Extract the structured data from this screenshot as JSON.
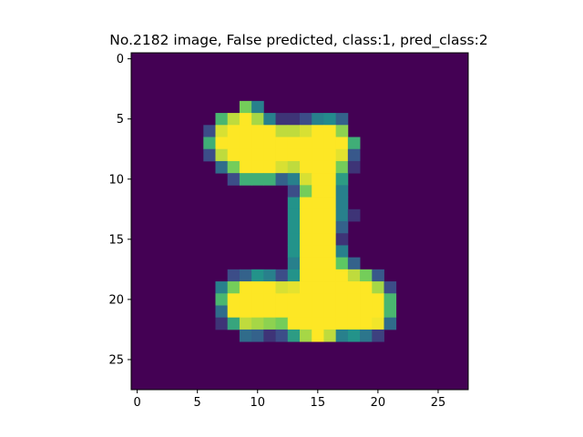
{
  "chart_data": {
    "type": "heatmap",
    "title": "No.2182 image, False predicted, class:1, pred_class:2",
    "xlabel": "",
    "ylabel": "",
    "x_ticks": [
      0,
      5,
      10,
      15,
      20,
      25
    ],
    "y_ticks": [
      0,
      5,
      10,
      15,
      20,
      25
    ],
    "xlim": [
      -0.5,
      27.5
    ],
    "ylim": [
      27.5,
      -0.5
    ],
    "colormap": "viridis",
    "value_range": [
      0,
      255
    ],
    "grid": false,
    "rows": 28,
    "cols": 28,
    "pixels": [
      [
        4,
        9,
        200
      ],
      [
        4,
        10,
        110
      ],
      [
        5,
        7,
        170
      ],
      [
        5,
        8,
        230
      ],
      [
        5,
        9,
        255
      ],
      [
        5,
        10,
        220
      ],
      [
        5,
        11,
        110
      ],
      [
        5,
        12,
        40
      ],
      [
        5,
        13,
        40
      ],
      [
        5,
        14,
        60
      ],
      [
        5,
        15,
        110
      ],
      [
        5,
        16,
        120
      ],
      [
        5,
        17,
        80
      ],
      [
        6,
        6,
        60
      ],
      [
        6,
        7,
        240
      ],
      [
        6,
        8,
        255
      ],
      [
        6,
        9,
        255
      ],
      [
        6,
        10,
        255
      ],
      [
        6,
        11,
        255
      ],
      [
        6,
        12,
        230
      ],
      [
        6,
        13,
        230
      ],
      [
        6,
        14,
        240
      ],
      [
        6,
        15,
        255
      ],
      [
        6,
        16,
        255
      ],
      [
        6,
        17,
        210
      ],
      [
        7,
        6,
        160
      ],
      [
        7,
        7,
        255
      ],
      [
        7,
        8,
        255
      ],
      [
        7,
        9,
        255
      ],
      [
        7,
        10,
        255
      ],
      [
        7,
        11,
        255
      ],
      [
        7,
        12,
        255
      ],
      [
        7,
        13,
        255
      ],
      [
        7,
        14,
        255
      ],
      [
        7,
        15,
        255
      ],
      [
        7,
        16,
        255
      ],
      [
        7,
        17,
        255
      ],
      [
        7,
        18,
        160
      ],
      [
        8,
        6,
        60
      ],
      [
        8,
        7,
        230
      ],
      [
        8,
        8,
        255
      ],
      [
        8,
        9,
        255
      ],
      [
        8,
        10,
        255
      ],
      [
        8,
        11,
        255
      ],
      [
        8,
        12,
        255
      ],
      [
        8,
        13,
        255
      ],
      [
        8,
        14,
        255
      ],
      [
        8,
        15,
        255
      ],
      [
        8,
        16,
        255
      ],
      [
        8,
        17,
        245
      ],
      [
        8,
        18,
        70
      ],
      [
        9,
        7,
        90
      ],
      [
        9,
        8,
        200
      ],
      [
        9,
        9,
        255
      ],
      [
        9,
        10,
        255
      ],
      [
        9,
        11,
        255
      ],
      [
        9,
        12,
        240
      ],
      [
        9,
        13,
        230
      ],
      [
        9,
        14,
        255
      ],
      [
        9,
        15,
        255
      ],
      [
        9,
        16,
        255
      ],
      [
        9,
        17,
        200
      ],
      [
        9,
        18,
        40
      ],
      [
        10,
        8,
        60
      ],
      [
        10,
        9,
        160
      ],
      [
        10,
        10,
        160
      ],
      [
        10,
        11,
        160
      ],
      [
        10,
        12,
        80
      ],
      [
        10,
        13,
        110
      ],
      [
        10,
        14,
        240
      ],
      [
        10,
        15,
        255
      ],
      [
        10,
        16,
        255
      ],
      [
        10,
        17,
        140
      ],
      [
        11,
        13,
        60
      ],
      [
        11,
        14,
        200
      ],
      [
        11,
        15,
        255
      ],
      [
        11,
        16,
        255
      ],
      [
        11,
        17,
        110
      ],
      [
        12,
        13,
        130
      ],
      [
        12,
        14,
        255
      ],
      [
        12,
        15,
        255
      ],
      [
        12,
        16,
        255
      ],
      [
        12,
        17,
        110
      ],
      [
        13,
        13,
        130
      ],
      [
        13,
        14,
        255
      ],
      [
        13,
        15,
        255
      ],
      [
        13,
        16,
        255
      ],
      [
        13,
        17,
        110
      ],
      [
        13,
        18,
        40
      ],
      [
        14,
        13,
        130
      ],
      [
        14,
        14,
        255
      ],
      [
        14,
        15,
        255
      ],
      [
        14,
        16,
        255
      ],
      [
        14,
        17,
        80
      ],
      [
        15,
        13,
        130
      ],
      [
        15,
        14,
        255
      ],
      [
        15,
        15,
        255
      ],
      [
        15,
        16,
        255
      ],
      [
        15,
        17,
        40
      ],
      [
        16,
        13,
        130
      ],
      [
        16,
        14,
        255
      ],
      [
        16,
        15,
        255
      ],
      [
        16,
        16,
        255
      ],
      [
        16,
        17,
        110
      ],
      [
        17,
        13,
        110
      ],
      [
        17,
        14,
        255
      ],
      [
        17,
        15,
        255
      ],
      [
        17,
        16,
        255
      ],
      [
        17,
        17,
        190
      ],
      [
        17,
        18,
        80
      ],
      [
        18,
        8,
        60
      ],
      [
        18,
        9,
        80
      ],
      [
        18,
        10,
        130
      ],
      [
        18,
        11,
        110
      ],
      [
        18,
        12,
        60
      ],
      [
        18,
        13,
        130
      ],
      [
        18,
        14,
        255
      ],
      [
        18,
        15,
        255
      ],
      [
        18,
        16,
        255
      ],
      [
        18,
        17,
        255
      ],
      [
        18,
        18,
        230
      ],
      [
        18,
        19,
        200
      ],
      [
        18,
        20,
        70
      ],
      [
        19,
        7,
        110
      ],
      [
        19,
        8,
        200
      ],
      [
        19,
        9,
        255
      ],
      [
        19,
        10,
        255
      ],
      [
        19,
        11,
        255
      ],
      [
        19,
        12,
        240
      ],
      [
        19,
        13,
        245
      ],
      [
        19,
        14,
        255
      ],
      [
        19,
        15,
        255
      ],
      [
        19,
        16,
        255
      ],
      [
        19,
        17,
        255
      ],
      [
        19,
        18,
        255
      ],
      [
        19,
        19,
        255
      ],
      [
        19,
        20,
        220
      ],
      [
        19,
        21,
        60
      ],
      [
        20,
        7,
        170
      ],
      [
        20,
        8,
        255
      ],
      [
        20,
        9,
        255
      ],
      [
        20,
        10,
        255
      ],
      [
        20,
        11,
        255
      ],
      [
        20,
        12,
        255
      ],
      [
        20,
        13,
        255
      ],
      [
        20,
        14,
        255
      ],
      [
        20,
        15,
        255
      ],
      [
        20,
        16,
        255
      ],
      [
        20,
        17,
        255
      ],
      [
        20,
        18,
        255
      ],
      [
        20,
        19,
        255
      ],
      [
        20,
        20,
        255
      ],
      [
        20,
        21,
        170
      ],
      [
        21,
        7,
        90
      ],
      [
        21,
        8,
        255
      ],
      [
        21,
        9,
        255
      ],
      [
        21,
        10,
        255
      ],
      [
        21,
        11,
        255
      ],
      [
        21,
        12,
        255
      ],
      [
        21,
        13,
        255
      ],
      [
        21,
        14,
        255
      ],
      [
        21,
        15,
        255
      ],
      [
        21,
        16,
        255
      ],
      [
        21,
        17,
        255
      ],
      [
        21,
        18,
        255
      ],
      [
        21,
        19,
        255
      ],
      [
        21,
        20,
        255
      ],
      [
        21,
        21,
        170
      ],
      [
        22,
        7,
        40
      ],
      [
        22,
        8,
        150
      ],
      [
        22,
        9,
        230
      ],
      [
        22,
        10,
        220
      ],
      [
        22,
        11,
        210
      ],
      [
        22,
        12,
        200
      ],
      [
        22,
        13,
        255
      ],
      [
        22,
        14,
        255
      ],
      [
        22,
        15,
        255
      ],
      [
        22,
        16,
        255
      ],
      [
        22,
        17,
        255
      ],
      [
        22,
        18,
        255
      ],
      [
        22,
        19,
        255
      ],
      [
        22,
        20,
        250
      ],
      [
        22,
        21,
        90
      ],
      [
        23,
        9,
        90
      ],
      [
        23,
        10,
        80
      ],
      [
        23,
        11,
        40
      ],
      [
        23,
        12,
        60
      ],
      [
        23,
        13,
        140
      ],
      [
        23,
        14,
        220
      ],
      [
        23,
        15,
        255
      ],
      [
        23,
        16,
        230
      ],
      [
        23,
        17,
        110
      ],
      [
        23,
        18,
        130
      ],
      [
        23,
        19,
        100
      ],
      [
        23,
        20,
        50
      ]
    ]
  }
}
